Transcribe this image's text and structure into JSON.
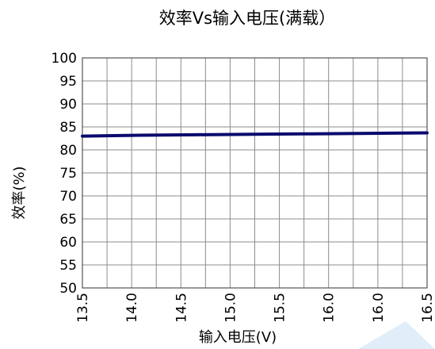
{
  "chart_data": {
    "type": "line",
    "title": "效率Vs输入电压(满载）",
    "xlabel": "输入电压(V)",
    "ylabel": "效率(%)",
    "xlim": [
      13.5,
      16.5
    ],
    "ylim": [
      50,
      100
    ],
    "x_ticks": [
      "13.5",
      "14.0",
      "14.5",
      "15.0",
      "15.5",
      "16.0",
      "16.0",
      "16.5"
    ],
    "y_ticks": [
      "100",
      "95",
      "90",
      "85",
      "80",
      "75",
      "70",
      "65",
      "60",
      "55",
      "50"
    ],
    "grid": true,
    "series": [
      {
        "color": "#0a0a6e",
        "x": [
          13.5,
          14.0,
          14.5,
          15.0,
          15.5,
          16.0,
          16.5
        ],
        "y": [
          83.0,
          83.2,
          83.3,
          83.4,
          83.5,
          83.6,
          83.7
        ]
      }
    ]
  }
}
